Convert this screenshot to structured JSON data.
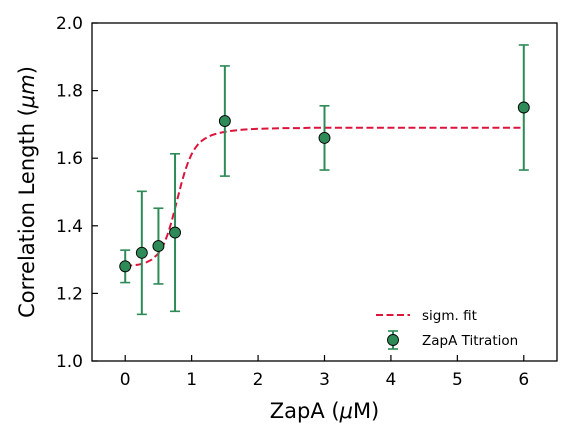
{
  "chart_data": {
    "type": "scatter",
    "xlabel_prefix": "ZapA (",
    "xlabel_mu": "μ",
    "xlabel_suffix": "M)",
    "ylabel_prefix": "Correlation Length (",
    "ylabel_mu": "μm",
    "ylabel_suffix": ")",
    "xlim": [
      -0.5,
      6.5
    ],
    "ylim": [
      1.0,
      2.0
    ],
    "xticks": [
      0,
      1,
      2,
      3,
      4,
      5,
      6
    ],
    "yticks": [
      1.0,
      1.2,
      1.4,
      1.6,
      1.8,
      2.0
    ],
    "xtick_labels": [
      "0",
      "1",
      "2",
      "3",
      "4",
      "5",
      "6"
    ],
    "ytick_labels": [
      "1.0",
      "1.2",
      "1.4",
      "1.6",
      "1.8",
      "2.0"
    ],
    "grid": false,
    "legend_position": "bottom-right",
    "series": [
      {
        "name": "ZapA Titration",
        "kind": "errorbar-scatter",
        "x": [
          0,
          0.25,
          0.5,
          0.75,
          1.5,
          3,
          6
        ],
        "y": [
          1.28,
          1.32,
          1.34,
          1.38,
          1.71,
          1.66,
          1.75
        ],
        "yerr": [
          0.048,
          0.182,
          0.112,
          0.233,
          0.163,
          0.095,
          0.185
        ],
        "marker_color": "#2e8b57",
        "errorbar_color": "#2e8b57"
      },
      {
        "name": "sigm. fit",
        "kind": "line",
        "style": "dashed",
        "color": "#dc143c",
        "x": [
          0,
          0.1,
          0.2,
          0.3,
          0.4,
          0.5,
          0.55,
          0.6,
          0.65,
          0.7,
          0.75,
          0.8,
          0.85,
          0.9,
          0.95,
          1.0,
          1.05,
          1.1,
          1.15,
          1.2,
          1.3,
          1.4,
          1.5,
          1.6,
          1.7,
          1.8,
          1.9,
          2.0,
          2.2,
          2.4,
          2.6,
          2.8,
          3.0,
          3.5,
          4.0,
          4.5,
          5.0,
          5.5,
          6.0
        ],
        "y": [
          1.282,
          1.283,
          1.285,
          1.29,
          1.3,
          1.318,
          1.333,
          1.354,
          1.381,
          1.414,
          1.452,
          1.49,
          1.528,
          1.562,
          1.59,
          1.612,
          1.629,
          1.642,
          1.651,
          1.658,
          1.668,
          1.674,
          1.678,
          1.681,
          1.683,
          1.685,
          1.686,
          1.687,
          1.688,
          1.689,
          1.689,
          1.69,
          1.69,
          1.69,
          1.69,
          1.69,
          1.69,
          1.69,
          1.69
        ]
      }
    ]
  }
}
